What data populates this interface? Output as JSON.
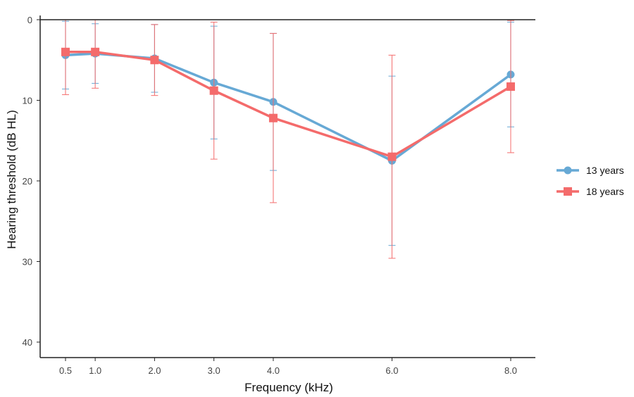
{
  "chart_data": {
    "type": "line",
    "xlabel": "Frequency (kHz)",
    "ylabel": "Hearing threshold (dB HL)",
    "x": [
      0.5,
      1.0,
      2.0,
      3.0,
      4.0,
      6.0,
      8.0
    ],
    "x_tick_labels": [
      "0.5",
      "1.0",
      "2.0",
      "3.0",
      "4.0",
      "6.0",
      "8.0"
    ],
    "y_ticks": [
      0,
      10,
      20,
      30,
      40
    ],
    "ylim": [
      0,
      42
    ],
    "y_inverted": true,
    "grid": false,
    "legend_position": "right",
    "series": [
      {
        "name": "13 years",
        "color": "#67a9d5",
        "marker": "circle",
        "values": [
          4.4,
          4.2,
          4.8,
          7.8,
          10.2,
          17.5,
          6.8
        ],
        "error": [
          4.2,
          3.7,
          4.2,
          7.0,
          8.5,
          10.5,
          6.5
        ]
      },
      {
        "name": "18 years",
        "color": "#f46b6b",
        "marker": "square",
        "values": [
          4.0,
          4.0,
          5.0,
          8.8,
          12.2,
          17.0,
          8.3
        ],
        "error": [
          5.3,
          4.5,
          4.4,
          8.5,
          10.5,
          12.6,
          8.2
        ]
      }
    ]
  }
}
